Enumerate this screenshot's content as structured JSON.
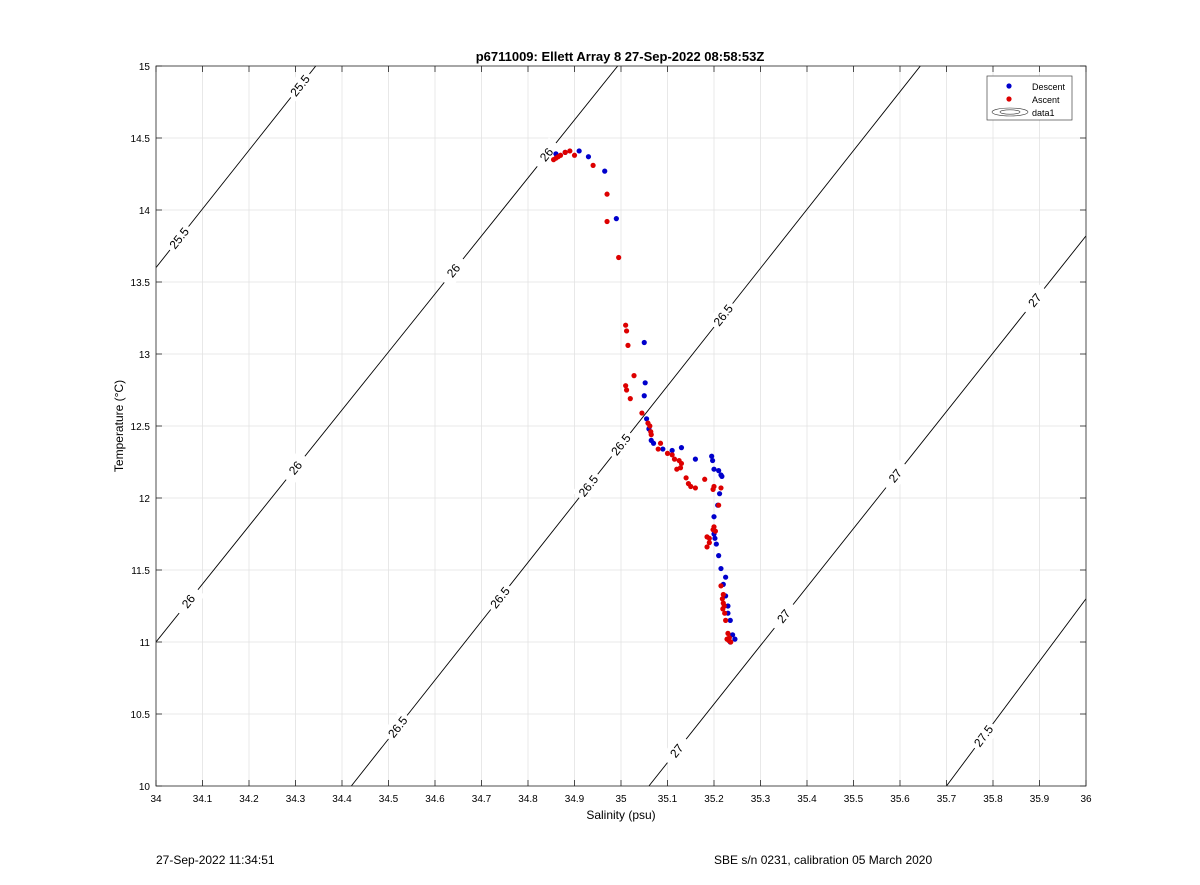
{
  "chart_data": {
    "type": "scatter",
    "title": "p6711009: Ellett Array 8 27-Sep-2022 08:58:53Z",
    "xlabel": "Salinity (psu)",
    "ylabel": "Temperature (°C)",
    "xlim": [
      34,
      36
    ],
    "ylim": [
      10,
      15
    ],
    "x_ticks": [
      "34",
      "34.1",
      "34.2",
      "34.3",
      "34.4",
      "34.5",
      "34.6",
      "34.7",
      "34.8",
      "34.9",
      "35",
      "35.1",
      "35.2",
      "35.3",
      "35.4",
      "35.5",
      "35.6",
      "35.7",
      "35.8",
      "35.9",
      "36"
    ],
    "y_ticks": [
      "10",
      "10.5",
      "11",
      "11.5",
      "12",
      "12.5",
      "13",
      "13.5",
      "14",
      "14.5",
      "15"
    ],
    "grid": true,
    "legend_placement": "top-right",
    "legend": [
      "Descent",
      "Ascent",
      "data1"
    ],
    "series": [
      {
        "name": "Descent",
        "color": "#0000cc",
        "points": [
          [
            34.86,
            14.39
          ],
          [
            34.88,
            14.4
          ],
          [
            34.91,
            14.41
          ],
          [
            34.93,
            14.37
          ],
          [
            34.965,
            14.27
          ],
          [
            34.99,
            13.94
          ],
          [
            35.05,
            13.08
          ],
          [
            35.052,
            12.8
          ],
          [
            35.05,
            12.71
          ],
          [
            35.055,
            12.55
          ],
          [
            35.06,
            12.48
          ],
          [
            35.065,
            12.4
          ],
          [
            35.07,
            12.38
          ],
          [
            35.09,
            12.34
          ],
          [
            35.11,
            12.33
          ],
          [
            35.13,
            12.35
          ],
          [
            35.16,
            12.27
          ],
          [
            35.195,
            12.29
          ],
          [
            35.197,
            12.26
          ],
          [
            35.2,
            12.2
          ],
          [
            35.21,
            12.19
          ],
          [
            35.215,
            12.16
          ],
          [
            35.217,
            12.15
          ],
          [
            35.212,
            12.03
          ],
          [
            35.208,
            11.95
          ],
          [
            35.2,
            11.87
          ],
          [
            35.2,
            11.75
          ],
          [
            35.202,
            11.72
          ],
          [
            35.205,
            11.68
          ],
          [
            35.21,
            11.6
          ],
          [
            35.215,
            11.51
          ],
          [
            35.225,
            11.45
          ],
          [
            35.22,
            11.4
          ],
          [
            35.225,
            11.32
          ],
          [
            35.23,
            11.25
          ],
          [
            35.23,
            11.2
          ],
          [
            35.235,
            11.15
          ],
          [
            35.24,
            11.05
          ],
          [
            35.245,
            11.02
          ],
          [
            35.235,
            11.0
          ]
        ]
      },
      {
        "name": "Ascent",
        "color": "#dd0000",
        "points": [
          [
            34.855,
            14.35
          ],
          [
            34.86,
            14.36
          ],
          [
            34.865,
            14.37
          ],
          [
            34.87,
            14.38
          ],
          [
            34.88,
            14.4
          ],
          [
            34.89,
            14.41
          ],
          [
            34.9,
            14.38
          ],
          [
            34.94,
            14.31
          ],
          [
            34.97,
            14.11
          ],
          [
            34.97,
            13.92
          ],
          [
            34.995,
            13.67
          ],
          [
            35.01,
            13.2
          ],
          [
            35.012,
            13.16
          ],
          [
            35.015,
            13.06
          ],
          [
            35.028,
            12.85
          ],
          [
            35.01,
            12.78
          ],
          [
            35.012,
            12.75
          ],
          [
            35.02,
            12.69
          ],
          [
            35.045,
            12.59
          ],
          [
            35.058,
            12.52
          ],
          [
            35.062,
            12.5
          ],
          [
            35.064,
            12.46
          ],
          [
            35.065,
            12.44
          ],
          [
            35.085,
            12.38
          ],
          [
            35.08,
            12.34
          ],
          [
            35.1,
            12.31
          ],
          [
            35.11,
            12.3
          ],
          [
            35.115,
            12.27
          ],
          [
            35.125,
            12.26
          ],
          [
            35.13,
            12.24
          ],
          [
            35.128,
            12.21
          ],
          [
            35.12,
            12.2
          ],
          [
            35.14,
            12.14
          ],
          [
            35.145,
            12.1
          ],
          [
            35.15,
            12.08
          ],
          [
            35.16,
            12.07
          ],
          [
            35.18,
            12.13
          ],
          [
            35.2,
            12.08
          ],
          [
            35.198,
            12.06
          ],
          [
            35.215,
            12.07
          ],
          [
            35.21,
            11.95
          ],
          [
            35.2,
            11.8
          ],
          [
            35.198,
            11.78
          ],
          [
            35.203,
            11.77
          ],
          [
            35.185,
            11.73
          ],
          [
            35.19,
            11.72
          ],
          [
            35.19,
            11.69
          ],
          [
            35.185,
            11.66
          ],
          [
            35.215,
            11.39
          ],
          [
            35.22,
            11.33
          ],
          [
            35.218,
            11.3
          ],
          [
            35.22,
            11.27
          ],
          [
            35.222,
            11.25
          ],
          [
            35.219,
            11.23
          ],
          [
            35.223,
            11.2
          ],
          [
            35.225,
            11.15
          ],
          [
            35.23,
            11.06
          ],
          [
            35.233,
            11.03
          ],
          [
            35.228,
            11.02
          ],
          [
            35.232,
            11.01
          ],
          [
            35.236,
            11.0
          ]
        ]
      }
    ],
    "contours": [
      {
        "label": "25.5",
        "points": [
          [
            34.0,
            13.6
          ],
          [
            34.4,
            15.23
          ]
        ],
        "labels_at": [
          34.31,
          34.05
        ]
      },
      {
        "label": "26",
        "points": [
          [
            34.0,
            11.0
          ],
          [
            35.05,
            15.23
          ]
        ],
        "labels_at": [
          34.64,
          34.84,
          34.3,
          34.07
        ]
      },
      {
        "label": "26.5",
        "points": [
          [
            34.42,
            10.0
          ],
          [
            35.7,
            15.23
          ]
        ],
        "labels_at": [
          35.22,
          35.0,
          34.93,
          34.74,
          34.52
        ]
      },
      {
        "label": "27",
        "points": [
          [
            35.06,
            10.0
          ],
          [
            36.0,
            13.82
          ]
        ],
        "labels_at": [
          35.89,
          35.59,
          35.35,
          35.12
        ]
      },
      {
        "label": "27.5",
        "points": [
          [
            35.7,
            10.0
          ],
          [
            36.0,
            11.3
          ]
        ],
        "labels_at": [
          35.78
        ]
      }
    ]
  },
  "footer": {
    "left": "27-Sep-2022 11:34:51",
    "right": "SBE s/n 0231, calibration 05 March 2020"
  }
}
